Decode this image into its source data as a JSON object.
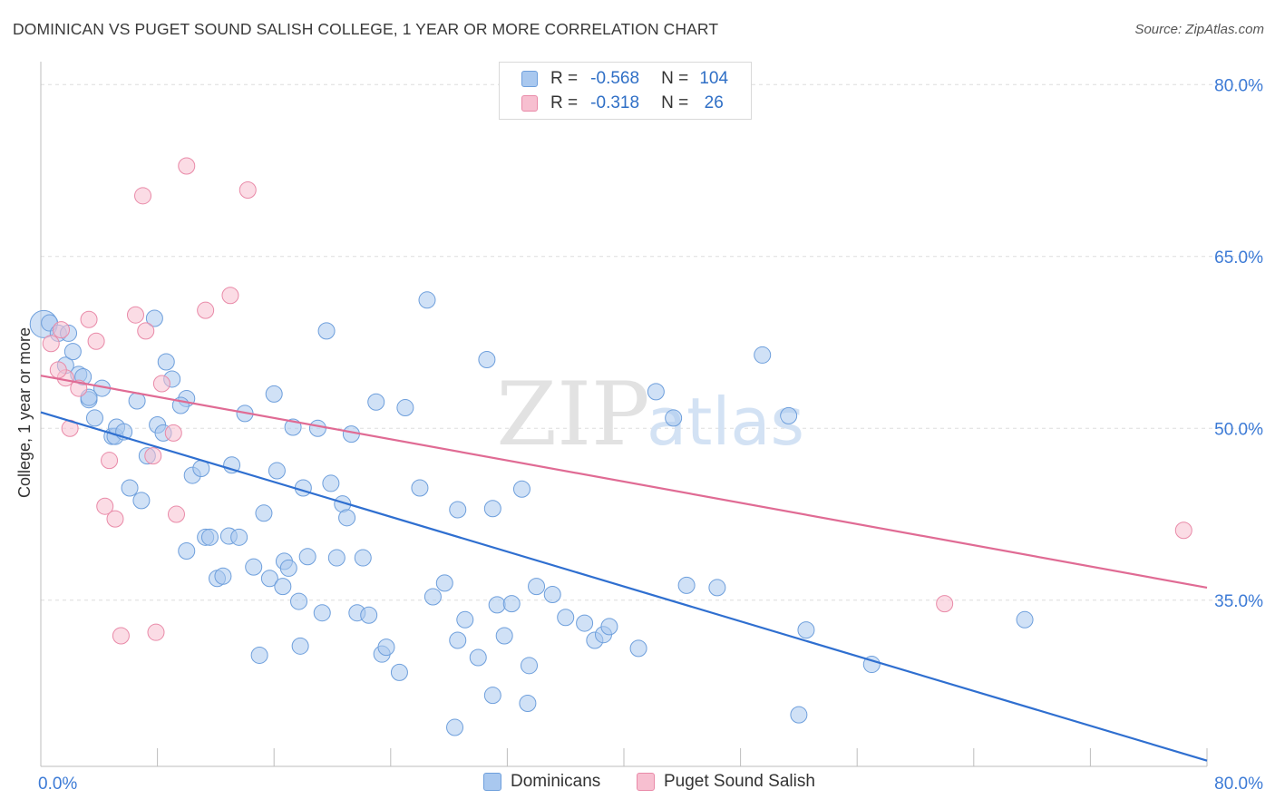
{
  "title": "DOMINICAN VS PUGET SOUND SALISH COLLEGE, 1 YEAR OR MORE CORRELATION CHART",
  "source": "Source: ZipAtlas.com",
  "watermark": {
    "zip": "ZIP",
    "atlas": "atlas"
  },
  "legend": {
    "r_label": "R =",
    "n_label": "N =",
    "rows": [
      {
        "name": "Dominicans",
        "r": "-0.568",
        "n": "104",
        "color": "#a9c8ef",
        "stroke": "#6e9fdc"
      },
      {
        "name": "Puget Sound Salish",
        "r": "-0.318",
        "n": "26",
        "color": "#f7bfd0",
        "stroke": "#e98aa8"
      }
    ]
  },
  "colors": {
    "blue_line": "#2f6fd0",
    "pink_line": "#e06b94",
    "tick_text": "#3d7bd6",
    "grid": "#dddddd"
  },
  "chart_data": {
    "type": "scatter",
    "ylabel": "College, 1 year or more",
    "xlabel": "",
    "xlim": [
      0,
      80
    ],
    "ylim": [
      20.5,
      82
    ],
    "x_tick_labels": [
      {
        "value": 0,
        "label": "0.0%"
      },
      {
        "value": 80,
        "label": "80.0%"
      }
    ],
    "y_tick_labels": [
      {
        "value": 35,
        "label": "35.0%"
      },
      {
        "value": 50,
        "label": "50.0%"
      },
      {
        "value": 65,
        "label": "65.0%"
      },
      {
        "value": 80,
        "label": "80.0%"
      }
    ],
    "x_minor_ticks": [
      0,
      8,
      16,
      24,
      32,
      40,
      48,
      56,
      64,
      72,
      80
    ],
    "grid": true,
    "legend_placement": "top-center and bottom",
    "series": [
      {
        "name": "Dominicans",
        "color": "#a9c8ef",
        "trend": {
          "x": [
            0,
            80
          ],
          "y": [
            51.4,
            21.0
          ]
        },
        "points": [
          [
            0.2,
            59.1
          ],
          [
            0.6,
            59.2
          ],
          [
            1.2,
            58.3
          ],
          [
            1.9,
            58.3
          ],
          [
            1.7,
            55.5
          ],
          [
            2.2,
            56.7
          ],
          [
            2.6,
            54.7
          ],
          [
            2.9,
            54.5
          ],
          [
            3.3,
            52.5
          ],
          [
            4.2,
            53.5
          ],
          [
            3.3,
            52.7
          ],
          [
            3.7,
            50.9
          ],
          [
            4.9,
            49.3
          ],
          [
            5.1,
            49.3
          ],
          [
            5.2,
            50.1
          ],
          [
            5.7,
            49.7
          ],
          [
            6.6,
            52.4
          ],
          [
            6.1,
            44.8
          ],
          [
            6.9,
            43.7
          ],
          [
            7.3,
            47.6
          ],
          [
            8.0,
            50.3
          ],
          [
            8.4,
            49.6
          ],
          [
            7.8,
            59.6
          ],
          [
            8.6,
            55.8
          ],
          [
            9.0,
            54.3
          ],
          [
            10.0,
            52.6
          ],
          [
            9.6,
            52.0
          ],
          [
            10.4,
            45.9
          ],
          [
            10.0,
            39.3
          ],
          [
            11.0,
            46.5
          ],
          [
            11.3,
            40.5
          ],
          [
            11.6,
            40.5
          ],
          [
            12.1,
            36.9
          ],
          [
            12.5,
            37.1
          ],
          [
            12.9,
            40.6
          ],
          [
            13.1,
            46.8
          ],
          [
            13.6,
            40.5
          ],
          [
            14.0,
            51.3
          ],
          [
            14.6,
            37.9
          ],
          [
            15.0,
            30.2
          ],
          [
            15.3,
            42.6
          ],
          [
            15.7,
            36.9
          ],
          [
            16.0,
            53.0
          ],
          [
            16.2,
            46.3
          ],
          [
            16.6,
            36.2
          ],
          [
            16.7,
            38.4
          ],
          [
            17.3,
            50.1
          ],
          [
            17.7,
            34.9
          ],
          [
            17.0,
            37.8
          ],
          [
            18.0,
            44.8
          ],
          [
            17.8,
            31.0
          ],
          [
            18.3,
            38.8
          ],
          [
            19.0,
            50.0
          ],
          [
            19.3,
            33.9
          ],
          [
            19.6,
            58.5
          ],
          [
            19.9,
            45.2
          ],
          [
            20.3,
            38.7
          ],
          [
            20.7,
            43.4
          ],
          [
            21.0,
            42.2
          ],
          [
            21.3,
            49.5
          ],
          [
            21.7,
            33.9
          ],
          [
            22.1,
            38.7
          ],
          [
            22.5,
            33.7
          ],
          [
            23.0,
            52.3
          ],
          [
            23.4,
            30.3
          ],
          [
            23.7,
            30.9
          ],
          [
            24.6,
            28.7
          ],
          [
            25.0,
            51.8
          ],
          [
            26.0,
            44.8
          ],
          [
            26.5,
            61.2
          ],
          [
            26.9,
            35.3
          ],
          [
            27.7,
            36.5
          ],
          [
            28.4,
            23.9
          ],
          [
            28.6,
            31.5
          ],
          [
            28.6,
            42.9
          ],
          [
            29.1,
            33.3
          ],
          [
            30.0,
            30.0
          ],
          [
            30.6,
            56.0
          ],
          [
            31.0,
            26.7
          ],
          [
            31.8,
            31.9
          ],
          [
            31.3,
            34.6
          ],
          [
            31.0,
            43.0
          ],
          [
            32.3,
            34.7
          ],
          [
            33.0,
            44.7
          ],
          [
            33.4,
            26.0
          ],
          [
            33.5,
            29.3
          ],
          [
            34.0,
            36.2
          ],
          [
            35.1,
            35.5
          ],
          [
            36.0,
            33.5
          ],
          [
            37.3,
            33.0
          ],
          [
            38.0,
            31.5
          ],
          [
            38.6,
            32.0
          ],
          [
            39.0,
            32.7
          ],
          [
            41.0,
            30.8
          ],
          [
            42.2,
            53.2
          ],
          [
            43.4,
            50.9
          ],
          [
            44.3,
            36.3
          ],
          [
            46.4,
            36.1
          ],
          [
            49.5,
            56.4
          ],
          [
            51.3,
            51.1
          ],
          [
            52.5,
            32.4
          ],
          [
            52.0,
            25.0
          ],
          [
            57.0,
            29.4
          ],
          [
            67.5,
            33.3
          ]
        ]
      },
      {
        "name": "Puget Sound Salish",
        "color": "#f7bfd0",
        "trend": {
          "x": [
            0,
            80
          ],
          "y": [
            54.6,
            36.1
          ]
        },
        "points": [
          [
            0.7,
            57.4
          ],
          [
            1.4,
            58.6
          ],
          [
            1.7,
            54.4
          ],
          [
            2.0,
            50.0
          ],
          [
            2.6,
            53.5
          ],
          [
            3.3,
            59.5
          ],
          [
            3.8,
            57.6
          ],
          [
            4.7,
            47.2
          ],
          [
            4.4,
            43.2
          ],
          [
            5.1,
            42.1
          ],
          [
            5.5,
            31.9
          ],
          [
            6.5,
            59.9
          ],
          [
            7.2,
            58.5
          ],
          [
            7.0,
            70.3
          ],
          [
            7.7,
            47.6
          ],
          [
            7.9,
            32.2
          ],
          [
            8.3,
            53.9
          ],
          [
            9.1,
            49.6
          ],
          [
            9.3,
            42.5
          ],
          [
            10.0,
            72.9
          ],
          [
            11.3,
            60.3
          ],
          [
            13.0,
            61.6
          ],
          [
            14.2,
            70.8
          ],
          [
            1.2,
            55.1
          ],
          [
            78.4,
            41.1
          ],
          [
            62.0,
            34.7
          ]
        ]
      }
    ]
  }
}
